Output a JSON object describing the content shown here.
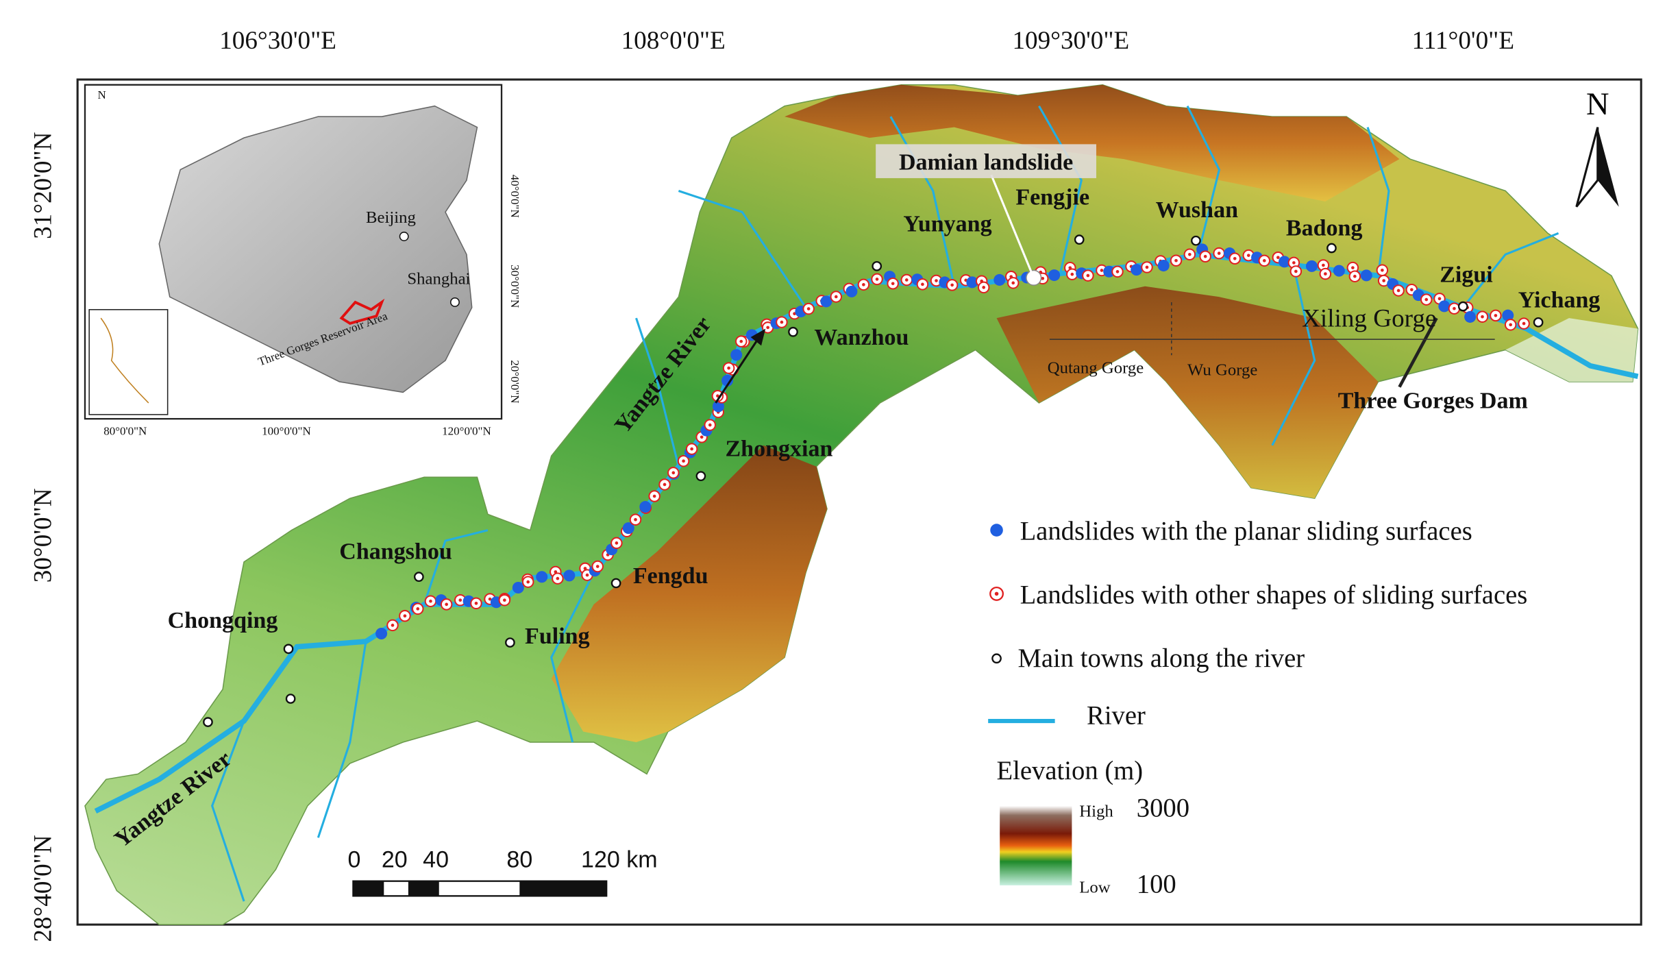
{
  "axes": {
    "top": [
      "106°30'0\"E",
      "108°0'0\"E",
      "109°30'0\"E",
      "111°0'0\"E"
    ],
    "left": [
      "31°20'0\"N",
      "30°0'0\"N",
      "28°40'0\"N"
    ]
  },
  "inset": {
    "north": "N",
    "beijing": "Beijing",
    "shanghai": "Shanghai",
    "area": "Three Gorges Reservoir Area",
    "bottom": [
      "80°0'0\"N",
      "100°0'0\"N",
      "120°0'0\"N"
    ],
    "right": [
      "40°0'0\"N",
      "30°0'0\"N",
      "20°0'0\"N"
    ]
  },
  "places": {
    "damian": "Damian landslide",
    "yunyang": "Yunyang",
    "fengjie": "Fengjie",
    "wushan": "Wushan",
    "badong": "Badong",
    "zigui": "Zigui",
    "yichang": "Yichang",
    "xiling": "Xiling Gorge",
    "qutang": "Qutang Gorge",
    "wu": "Wu Gorge",
    "dam": "Three Gorges Dam",
    "wanzhou": "Wanzhou",
    "zhongxian": "Zhongxian",
    "yangtze_upper": "Yangtze River",
    "yangtze_lower": "Yangtze River",
    "fengdu": "Fengdu",
    "changshou": "Changshou",
    "chongqing": "Chongqing",
    "fuling": "Fuling"
  },
  "legend": {
    "planar": "Landslides with the planar sliding surfaces",
    "other": "Landslides with other shapes of sliding surfaces",
    "towns": "Main towns along the river",
    "river": "River",
    "elevation": "Elevation (m)",
    "high": "High",
    "high_value": "3000",
    "low": "Low",
    "low_value": "100"
  },
  "scale": [
    "0",
    "20",
    "40",
    "80",
    "120 km"
  ],
  "north": "N"
}
